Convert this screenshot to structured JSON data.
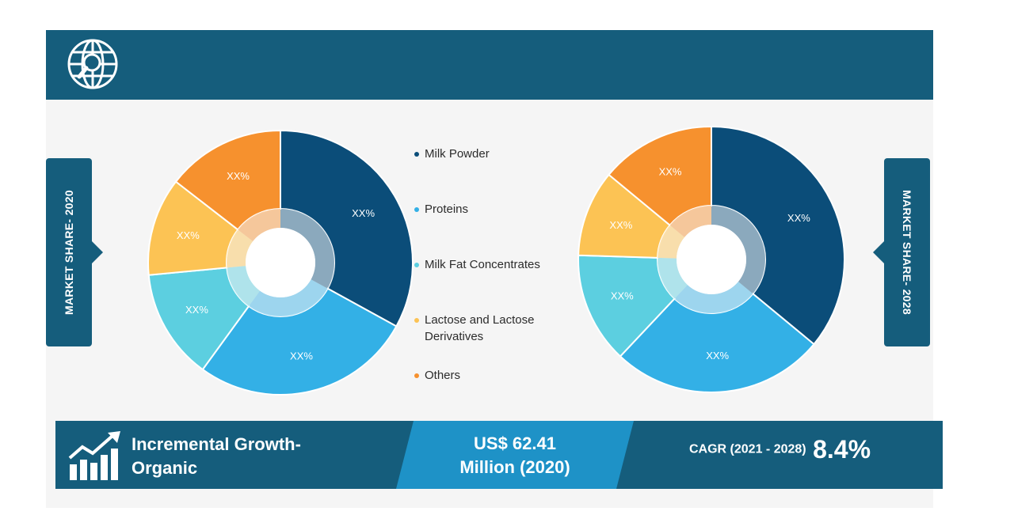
{
  "header": {
    "icon": "globe-search-icon"
  },
  "side_tabs": {
    "left_label": "MARKET SHARE- 2020",
    "right_label": "MARKET SHARE- 2028"
  },
  "legend": [
    {
      "label": "Milk Powder",
      "color": "#0b4d79"
    },
    {
      "label": "Proteins",
      "color": "#33b0e6"
    },
    {
      "label": "Milk Fat Concentrates",
      "color": "#5ccfe0"
    },
    {
      "label": "Lactose and Lactose Derivatives",
      "color": "#fcc354"
    },
    {
      "label": "Others",
      "color": "#f6912e"
    }
  ],
  "chart_data": [
    {
      "type": "pie",
      "title": "MARKET SHARE- 2020",
      "categories": [
        "Milk Powder",
        "Proteins",
        "Milk Fat Concentrates",
        "Lactose and Lactose Derivatives",
        "Others"
      ],
      "values": [
        33,
        27,
        13.5,
        12,
        14.5
      ],
      "data_labels": [
        "XX%",
        "XX%",
        "XX%",
        "XX%",
        "XX%"
      ],
      "colors": [
        "#0b4d79",
        "#33b0e6",
        "#5ccfe0",
        "#fcc354",
        "#f6912e"
      ]
    },
    {
      "type": "pie",
      "title": "MARKET SHARE- 2028",
      "categories": [
        "Milk Powder",
        "Proteins",
        "Milk Fat Concentrates",
        "Lactose and Lactose Derivatives",
        "Others"
      ],
      "values": [
        36,
        26,
        13.5,
        10.5,
        14
      ],
      "data_labels": [
        "XX%",
        "XX%",
        "XX%",
        "XX%",
        "XX%"
      ],
      "colors": [
        "#0b4d79",
        "#33b0e6",
        "#5ccfe0",
        "#fcc354",
        "#f6912e"
      ]
    }
  ],
  "footer": {
    "growth_line1": "Incremental Growth-",
    "growth_line2": "Organic",
    "value_line1": "US$ 62.41",
    "value_line2": "Million (2020)",
    "cagr_label": "CAGR (2021 - 2028)",
    "cagr_value": "8.4%",
    "icon": "growth-chart-icon"
  }
}
